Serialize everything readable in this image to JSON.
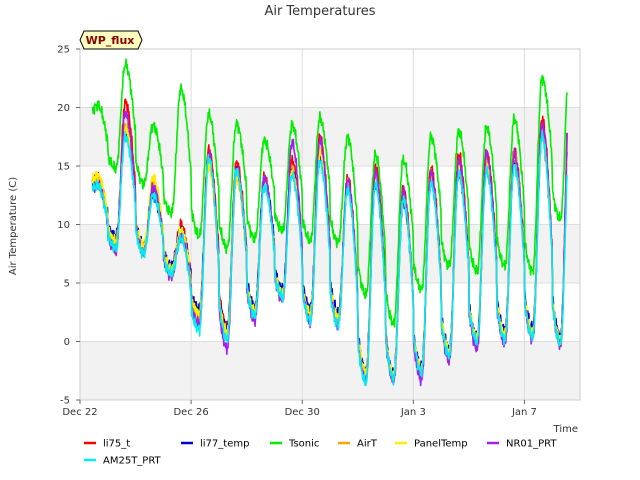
{
  "chart_data": {
    "type": "line",
    "title": "Air Temperatures",
    "xlabel": "Time",
    "ylabel": "Air Temperature (C)",
    "badge": "WP_flux",
    "ylim": [
      -5,
      25
    ],
    "xlim": [
      "2021-12-22",
      "2022-01-09"
    ],
    "grid": true,
    "legend_position": "bottom",
    "y_ticks": [
      -5,
      0,
      5,
      10,
      15,
      20,
      25
    ],
    "x_ticks": [
      {
        "label": "Dec 22",
        "date": "2021-12-22"
      },
      {
        "label": "Dec 26",
        "date": "2021-12-26"
      },
      {
        "label": "Dec 30",
        "date": "2021-12-30"
      },
      {
        "label": "Jan 3",
        "date": "2022-01-03"
      },
      {
        "label": "Jan 7",
        "date": "2022-01-07"
      }
    ],
    "day_ticks": [
      "Dec 22",
      "Dec 23",
      "Dec 24",
      "Dec 25",
      "Dec 26",
      "Dec 27",
      "Dec 28",
      "Dec 29",
      "Dec 30",
      "Dec 31",
      "Jan 1",
      "Jan 2",
      "Jan 3",
      "Jan 4",
      "Jan 5",
      "Jan 6",
      "Jan 7",
      "Jan 8"
    ],
    "series": [
      {
        "name": "li75_t",
        "color": "#ff0000",
        "min": [
          13.2,
          8.0,
          7.9,
          6.0,
          2.0,
          1.3,
          2.5,
          4.0,
          2.2,
          1.8,
          -2.8,
          -3.0,
          -2.5,
          -1.0,
          0.0,
          0.6,
          0.8,
          0.1
        ],
        "max": [
          14.0,
          20.5,
          13.0,
          10.0,
          16.4,
          15.3,
          14.0,
          15.5,
          17.5,
          14.0,
          15.0,
          13.0,
          14.8,
          16.0,
          16.2,
          16.3,
          19.0,
          22.0
        ]
      },
      {
        "name": "li77_temp",
        "color": "#0000cd",
        "min": [
          13.0,
          9.0,
          8.2,
          6.5,
          2.8,
          1.0,
          3.0,
          4.5,
          2.8,
          2.5,
          -2.5,
          -2.8,
          -2.2,
          -0.6,
          0.4,
          0.9,
          1.2,
          0.5
        ],
        "max": [
          13.6,
          18.0,
          12.5,
          9.5,
          15.4,
          14.4,
          13.8,
          14.5,
          16.0,
          13.2,
          13.6,
          12.0,
          14.0,
          14.5,
          15.0,
          15.5,
          17.5,
          20.5
        ]
      },
      {
        "name": "Tsonic",
        "color": "#00ee00",
        "min": [
          19.3,
          14.8,
          13.5,
          11.0,
          9.0,
          8.0,
          8.8,
          9.5,
          8.6,
          8.5,
          4.0,
          1.5,
          4.5,
          6.5,
          6.0,
          6.5,
          6.0,
          10.5
        ],
        "max": [
          20.2,
          23.7,
          18.5,
          21.6,
          19.4,
          18.6,
          17.2,
          18.5,
          19.1,
          17.5,
          16.0,
          15.5,
          17.5,
          18.0,
          18.3,
          19.0,
          22.5,
          24.6
        ]
      },
      {
        "name": "AirT",
        "color": "#ffa500",
        "min": [
          12.5,
          8.3,
          7.8,
          5.8,
          2.0,
          0.5,
          2.2,
          3.8,
          2.0,
          1.8,
          -3.0,
          -3.2,
          -2.8,
          -1.2,
          -0.2,
          0.2,
          0.5,
          -0.2
        ],
        "max": [
          13.5,
          18.5,
          13.5,
          9.2,
          15.2,
          14.0,
          13.6,
          14.6,
          16.5,
          13.5,
          14.0,
          12.5,
          14.0,
          15.0,
          15.5,
          16.0,
          18.0,
          21.0
        ]
      },
      {
        "name": "PanelTemp",
        "color": "#ffee00",
        "min": [
          13.4,
          8.6,
          8.2,
          6.2,
          2.4,
          0.8,
          2.6,
          4.2,
          2.4,
          2.0,
          -2.6,
          -2.9,
          -2.4,
          -0.8,
          0.3,
          0.6,
          0.8,
          0.2
        ],
        "max": [
          14.2,
          18.2,
          14.0,
          9.5,
          15.0,
          14.2,
          13.4,
          14.4,
          16.2,
          13.4,
          13.8,
          12.4,
          14.2,
          14.8,
          15.2,
          15.8,
          17.8,
          20.8
        ]
      },
      {
        "name": "NR01_PRT",
        "color": "#a020f0",
        "min": [
          12.9,
          7.8,
          7.6,
          5.6,
          1.5,
          -0.6,
          1.8,
          3.6,
          1.6,
          1.4,
          -3.3,
          -3.4,
          -3.3,
          -1.6,
          -0.6,
          -0.2,
          0.2,
          -0.3
        ],
        "max": [
          13.4,
          19.5,
          13.2,
          9.0,
          16.0,
          14.8,
          14.0,
          17.0,
          17.2,
          13.8,
          14.5,
          12.8,
          14.4,
          15.5,
          16.0,
          16.0,
          18.5,
          21.8
        ]
      },
      {
        "name": "AM25T_PRT",
        "color": "#00eeee",
        "min": [
          13.0,
          8.0,
          7.5,
          5.8,
          1.0,
          0.2,
          2.2,
          3.8,
          1.8,
          1.4,
          -3.5,
          -3.2,
          -2.6,
          -1.2,
          0.0,
          0.2,
          0.4,
          -0.2
        ],
        "max": [
          13.3,
          17.5,
          12.5,
          8.8,
          15.7,
          14.6,
          13.2,
          14.2,
          15.4,
          13.0,
          13.4,
          12.2,
          13.5,
          14.3,
          14.5,
          15.0,
          17.6,
          17.8
        ]
      }
    ]
  }
}
